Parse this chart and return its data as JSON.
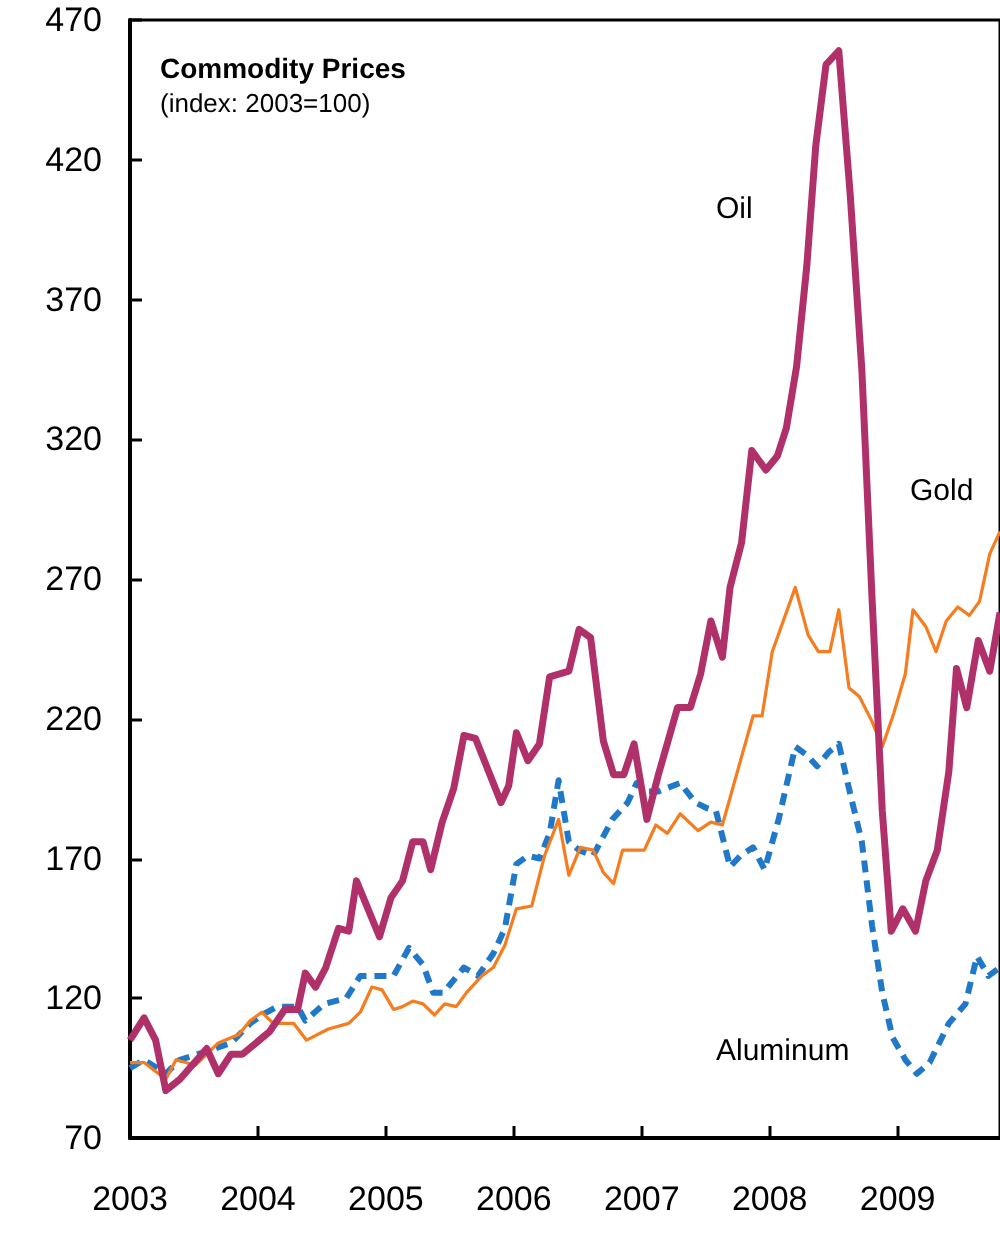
{
  "chart_data": {
    "type": "line",
    "title": "Commodity Prices",
    "subtitle": "(index: 2003=100)",
    "xlim": [
      2003,
      2009.8
    ],
    "xticks": [
      2003,
      2004,
      2005,
      2006,
      2007,
      2008,
      2009
    ],
    "ylim": [
      70,
      470
    ],
    "yticks": [
      70,
      120,
      170,
      220,
      270,
      320,
      370,
      420,
      470
    ],
    "grid": false,
    "marker": "none",
    "series": [
      {
        "name": "Oil",
        "color": "#b0306a",
        "line_style": "solid",
        "x": [
          2003.0,
          2003.11,
          2003.2,
          2003.28,
          2003.39,
          2003.6,
          2003.69,
          2003.79,
          2003.88,
          2004.09,
          2004.21,
          2004.31,
          2004.37,
          2004.45,
          2004.53,
          2004.63,
          2004.71,
          2004.77,
          2004.95,
          2005.04,
          2005.13,
          2005.21,
          2005.29,
          2005.35,
          2005.44,
          2005.53,
          2005.61,
          2005.7,
          2005.9,
          2005.96,
          2006.02,
          2006.11,
          2006.2,
          2006.28,
          2006.43,
          2006.51,
          2006.6,
          2006.7,
          2006.78,
          2006.86,
          2006.94,
          2007.04,
          2007.13,
          2007.28,
          2007.38,
          2007.46,
          2007.54,
          2007.63,
          2007.69,
          2007.78,
          2007.86,
          2007.97,
          2008.06,
          2008.13,
          2008.21,
          2008.29,
          2008.36,
          2008.44,
          2008.54,
          2008.63,
          2008.72,
          2008.8,
          2008.88,
          2008.95,
          2009.04,
          2009.14,
          2009.22,
          2009.31,
          2009.4,
          2009.46,
          2009.54,
          2009.63,
          2009.72,
          2009.8
        ],
        "values": [
          105,
          113,
          105,
          87,
          91,
          102,
          93,
          100,
          100,
          108,
          116,
          116,
          129,
          124,
          131,
          145,
          144,
          162,
          142,
          156,
          162,
          176,
          176,
          166,
          183,
          195,
          214,
          213,
          190,
          196,
          215,
          205,
          211,
          235,
          237,
          252,
          249,
          212,
          200,
          200,
          211,
          184,
          200,
          224,
          224,
          236,
          255,
          242,
          267,
          283,
          316,
          309,
          314,
          324,
          346,
          382,
          425,
          454,
          459,
          407,
          345,
          263,
          187,
          144,
          152,
          144,
          162,
          173,
          201,
          238,
          224,
          248,
          237,
          258
        ]
      },
      {
        "name": "Gold",
        "color": "#f57c1f",
        "line_style": "solid",
        "x": [
          2003.0,
          2003.11,
          2003.28,
          2003.36,
          2003.51,
          2003.6,
          2003.69,
          2003.85,
          2003.94,
          2004.03,
          2004.12,
          2004.28,
          2004.38,
          2004.55,
          2004.71,
          2004.8,
          2004.89,
          2004.97,
          2005.06,
          2005.13,
          2005.21,
          2005.29,
          2005.38,
          2005.46,
          2005.55,
          2005.63,
          2005.75,
          2005.84,
          2005.93,
          2006.02,
          2006.14,
          2006.24,
          2006.35,
          2006.43,
          2006.52,
          2006.62,
          2006.7,
          2006.78,
          2006.85,
          2007.02,
          2007.11,
          2007.2,
          2007.3,
          2007.44,
          2007.54,
          2007.63,
          2007.87,
          2007.94,
          2008.02,
          2008.2,
          2008.3,
          2008.38,
          2008.47,
          2008.54,
          2008.62,
          2008.7,
          2008.8,
          2008.88,
          2008.97,
          2009.06,
          2009.12,
          2009.22,
          2009.3,
          2009.38,
          2009.47,
          2009.56,
          2009.64,
          2009.72,
          2009.8
        ],
        "values": [
          97,
          97,
          91,
          98,
          96,
          100,
          104,
          107,
          112,
          115,
          111,
          111,
          105,
          109,
          111,
          115,
          124,
          123,
          116,
          117,
          119,
          118,
          114,
          118,
          117,
          122,
          128,
          131,
          139,
          152,
          153,
          171,
          184,
          164,
          174,
          173,
          165,
          161,
          173,
          173,
          182,
          179,
          186,
          180,
          183,
          182,
          221,
          221,
          244,
          267,
          250,
          244,
          244,
          259,
          231,
          228,
          219,
          210,
          222,
          236,
          259,
          253,
          244,
          255,
          260,
          257,
          262,
          279,
          287
        ]
      },
      {
        "name": "Aluminum",
        "color": "#1f78c8",
        "line_style": "dashed",
        "x": [
          2003.0,
          2003.11,
          2003.28,
          2003.39,
          2003.6,
          2003.79,
          2003.94,
          2004.03,
          2004.15,
          2004.31,
          2004.37,
          2004.52,
          2004.69,
          2004.8,
          2004.95,
          2005.06,
          2005.18,
          2005.29,
          2005.37,
          2005.45,
          2005.61,
          2005.72,
          2005.84,
          2005.93,
          2006.02,
          2006.11,
          2006.2,
          2006.28,
          2006.35,
          2006.43,
          2006.51,
          2006.62,
          2006.77,
          2006.89,
          2006.96,
          2007.05,
          2007.13,
          2007.3,
          2007.42,
          2007.51,
          2007.58,
          2007.69,
          2007.77,
          2007.87,
          2007.96,
          2008.07,
          2008.2,
          2008.29,
          2008.37,
          2008.46,
          2008.54,
          2008.63,
          2008.72,
          2008.8,
          2008.88,
          2008.96,
          2009.06,
          2009.15,
          2009.25,
          2009.4,
          2009.53,
          2009.62,
          2009.71,
          2009.8
        ],
        "values": [
          95,
          98,
          93,
          98,
          101,
          104,
          111,
          114,
          117,
          117,
          112,
          118,
          120,
          128,
          128,
          128,
          138,
          132,
          122,
          122,
          131,
          128,
          136,
          145,
          168,
          171,
          170,
          179,
          198,
          176,
          173,
          171,
          184,
          190,
          197,
          194,
          194,
          197,
          190,
          188,
          187,
          167,
          171,
          174,
          166,
          184,
          210,
          207,
          203,
          208,
          211,
          193,
          176,
          146,
          122,
          106,
          98,
          93,
          97,
          111,
          118,
          135,
          128,
          131
        ]
      }
    ]
  }
}
